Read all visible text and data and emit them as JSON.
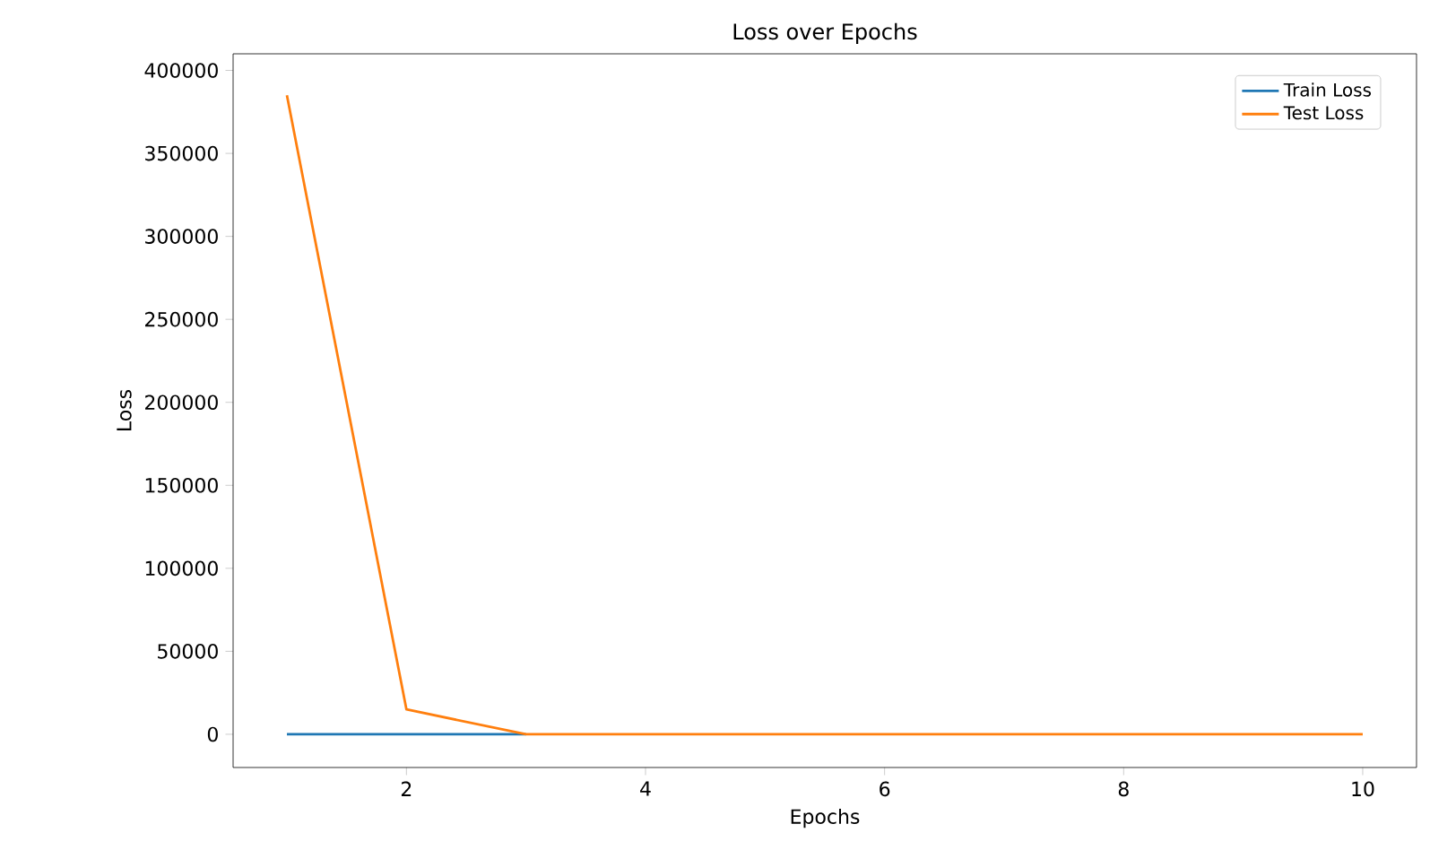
{
  "chart_data": {
    "type": "line",
    "title": "Loss over Epochs",
    "xlabel": "Epochs",
    "ylabel": "Loss",
    "x": [
      1,
      2,
      3,
      4,
      5,
      6,
      7,
      8,
      9,
      10
    ],
    "series": [
      {
        "name": "Train Loss",
        "color": "#1f77b4",
        "values": [
          0,
          0,
          0,
          null,
          null,
          null,
          null,
          null,
          null,
          null
        ]
      },
      {
        "name": "Test Loss",
        "color": "#ff7f0e",
        "values": [
          385000,
          15000,
          0,
          0,
          0,
          0,
          0,
          0,
          0,
          0
        ]
      }
    ],
    "xlim": [
      0.55,
      10.45
    ],
    "ylim": [
      -20000,
      410000
    ],
    "xticks": [
      2,
      4,
      6,
      8,
      10
    ],
    "yticks": [
      0,
      50000,
      100000,
      150000,
      200000,
      250000,
      300000,
      350000,
      400000
    ],
    "legend": "top right",
    "grid": false
  }
}
